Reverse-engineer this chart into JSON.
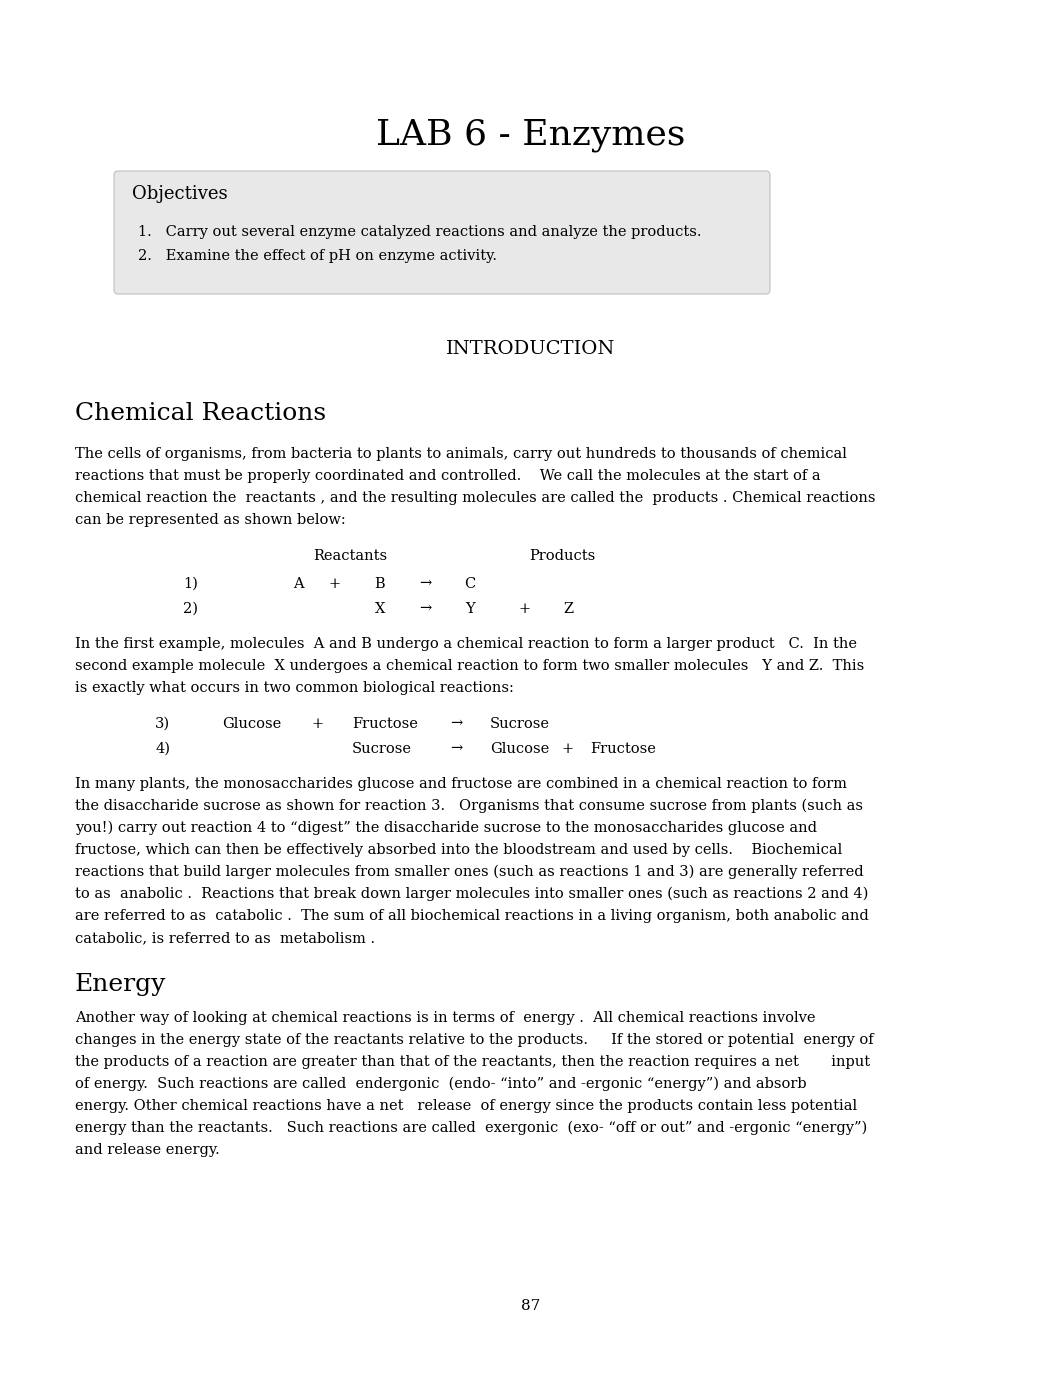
{
  "title": "LAB 6 - Enzymes",
  "title_fontsize": 26,
  "title_font": "serif",
  "bg_color": "#ffffff",
  "text_color": "#000000",
  "objectives_title": "Objectives",
  "objectives": [
    "Carry out several enzyme catalyzed reactions and analyze the products.",
    "Examine the effect of pH on enzyme activity."
  ],
  "section1": "INTRODUCTION",
  "section2": "Chemical Reactions",
  "para1_lines": [
    "The cells of organisms, from bacteria to plants to animals, carry out hundreds to thousands of chemical",
    "reactions that must be properly coordinated and controlled.    We call the molecules at the start of a",
    "chemical reaction the  reactants , and the resulting molecules are called the  products . Chemical reactions",
    "can be represented as shown below:"
  ],
  "reactants_label": "Reactants",
  "products_label": "Products",
  "para2_lines": [
    "In the first example, molecules  A and B undergo a chemical reaction to form a larger product   C.  In the",
    "second example molecule  X undergoes a chemical reaction to form two smaller molecules   Y and Z.  This",
    "is exactly what occurs in two common biological reactions:"
  ],
  "para3_lines": [
    "In many plants, the monosaccharides glucose and fructose are combined in a chemical reaction to form",
    "the disaccharide sucrose as shown for reaction 3.   Organisms that consume sucrose from plants (such as",
    "you!) carry out reaction 4 to “digest” the disaccharide sucrose to the monosaccharides glucose and",
    "fructose, which can then be effectively absorbed into the bloodstream and used by cells.    Biochemical",
    "reactions that build larger molecules from smaller ones (such as reactions 1 and 3) are generally referred",
    "to as  anabolic .  Reactions that break down larger molecules into smaller ones (such as reactions 2 and 4)",
    "are referred to as  catabolic .  The sum of all biochemical reactions in a living organism, both anabolic and",
    "catabolic, is referred to as  metabolism ."
  ],
  "section3": "Energy",
  "para4_lines": [
    "Another way of looking at chemical reactions is in terms of  energy .  All chemical reactions involve",
    "changes in the energy state of the reactants relative to the products.     If the stored or potential  energy of",
    "the products of a reaction are greater than that of the reactants, then the reaction requires a net       input",
    "of energy.  Such reactions are called  endergonic  (endo- “into” and -ergonic “energy”) and absorb",
    "energy. Other chemical reactions have a net   release  of energy since the products contain less potential",
    "energy than the reactants.   Such reactions are called  exergonic  (exo- “off or out” and -ergonic “energy”)",
    "and release energy."
  ],
  "page_number": "87",
  "box_color": "#e8e8e8",
  "box_border": "#c0c0c0"
}
